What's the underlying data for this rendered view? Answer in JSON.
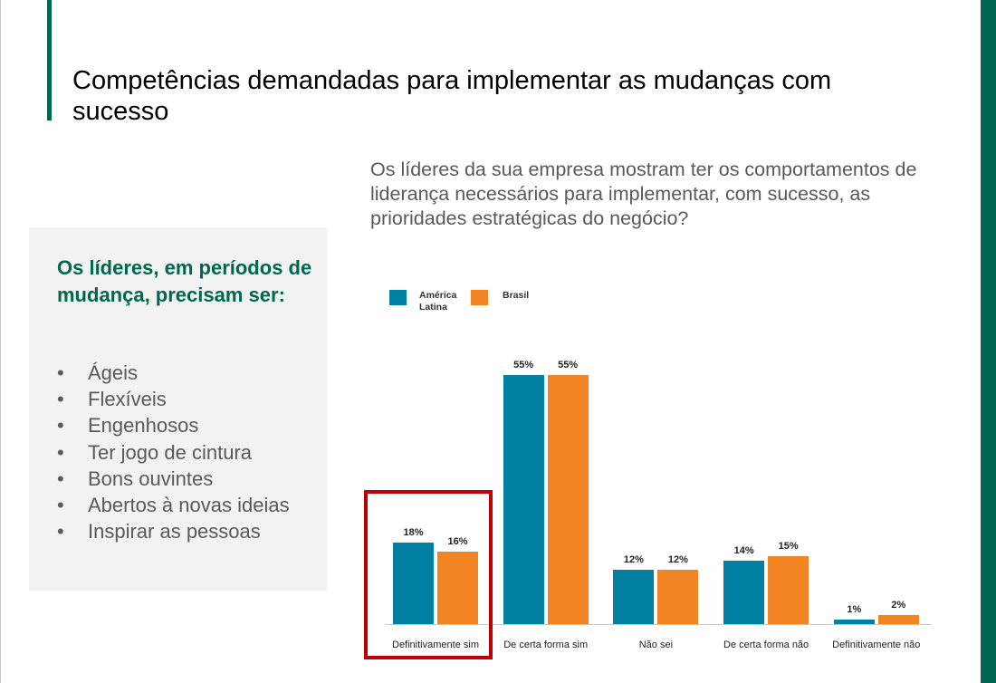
{
  "slide": {
    "title": "Competências demandadas para implementar as mudanças com sucesso",
    "colors": {
      "brand_green": "#00674f",
      "teal": "#0081a3",
      "orange": "#f28423",
      "highlight_red": "#c00000",
      "box_bg": "#f2f2f2"
    }
  },
  "sidebox": {
    "heading": "Os líderes, em períodos de mudança, precisam ser:",
    "bullet": "•",
    "items": [
      "Ágeis",
      "Flexíveis",
      "Engenhosos",
      "Ter jogo de cintura",
      "Bons ouvintes",
      "Abertos à novas ideias",
      "Inspirar as pessoas"
    ]
  },
  "question": "Os líderes da sua empresa mostram ter os comportamentos de liderança necessários para implementar, com sucesso, as prioridades estratégicas do negócio?",
  "chart_data": {
    "type": "bar",
    "title": "",
    "xlabel": "",
    "ylabel": "",
    "ylim": [
      0,
      60
    ],
    "grid": false,
    "legend_position": "top-left",
    "categories": [
      "Definitivamente sim",
      "De certa forma sim",
      "Não sei",
      "De certa forma não",
      "Definitivamente não"
    ],
    "series": [
      {
        "name": "América Latina",
        "color": "#0081a3",
        "values": [
          18,
          55,
          12,
          14,
          1
        ],
        "labels": [
          "18%",
          "55%",
          "12%",
          "14%",
          "1%"
        ]
      },
      {
        "name": "Brasil",
        "color": "#f28423",
        "values": [
          16,
          55,
          12,
          15,
          2
        ],
        "labels": [
          "16%",
          "55%",
          "12%",
          "15%",
          "2%"
        ]
      }
    ],
    "highlighted_category": "Definitivamente sim"
  }
}
